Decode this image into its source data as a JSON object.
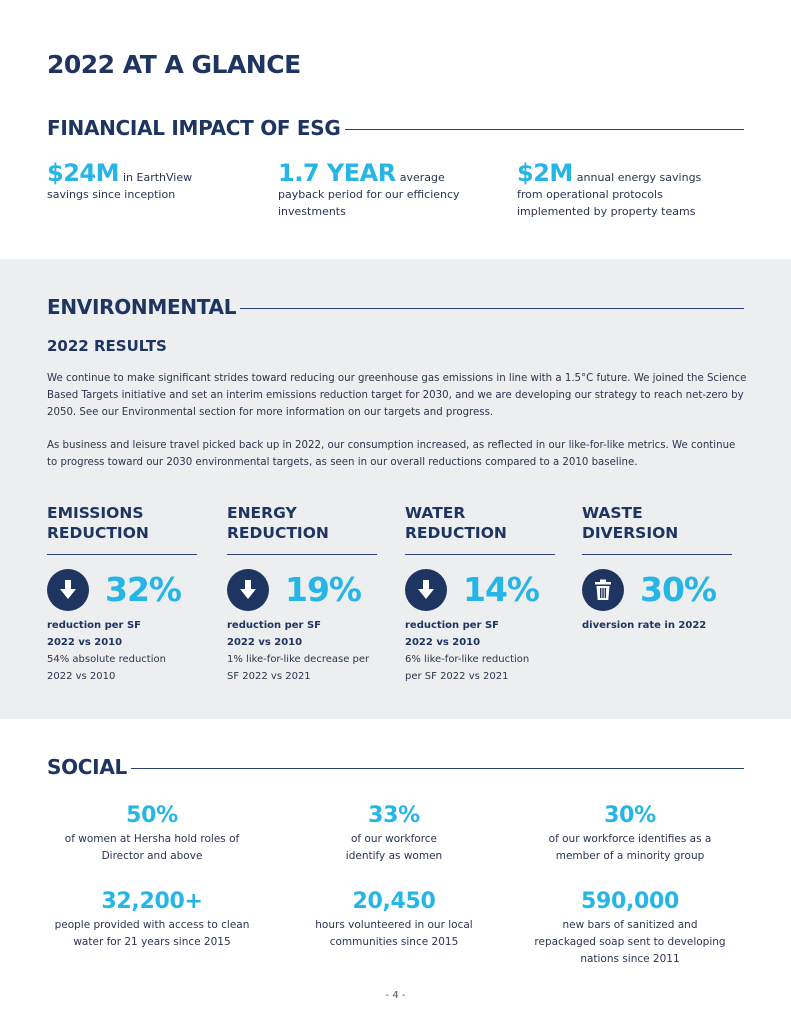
{
  "page_title": "2022 AT A GLANCE",
  "financial": {
    "heading": "FINANCIAL IMPACT OF ESG",
    "items": [
      {
        "value": "$24M",
        "lead": "in EarthView",
        "rest": "savings since inception"
      },
      {
        "value": "1.7 YEAR",
        "lead": "average",
        "rest": "payback period for our efficiency investments"
      },
      {
        "value": "$2M",
        "lead": "annual energy savings",
        "rest": "from operational protocols implemented by property teams"
      }
    ]
  },
  "environmental": {
    "heading": "ENVIRONMENTAL",
    "subheading": "2022 RESULTS",
    "paragraphs": [
      "We continue to make significant strides toward reducing our greenhouse gas emissions in line with a 1.5°C future. We joined the Science Based Targets initiative and set an interim emissions reduction target for 2030, and we are developing our strategy to reach net-zero by 2050. See our Environmental section for more information on our targets and progress.",
      "As business and leisure travel picked back up in 2022, our consumption increased, as reflected in our like-for-like metrics. We continue to progress toward our 2030 environmental targets, as seen in our overall reductions compared to a 2010 baseline."
    ],
    "metrics": [
      {
        "title1": "EMISSIONS",
        "title2": "REDUCTION",
        "icon": "down-arrow-icon",
        "value": "32%",
        "bold1": "reduction per SF",
        "bold2": "2022 vs 2010",
        "line1": "54% absolute reduction",
        "line2": "2022 vs 2010"
      },
      {
        "title1": "ENERGY",
        "title2": "REDUCTION",
        "icon": "down-arrow-icon",
        "value": "19%",
        "bold1": "reduction per SF",
        "bold2": "2022 vs 2010",
        "line1": "1% like-for-like decrease per",
        "line2": "SF 2022 vs 2021"
      },
      {
        "title1": "WATER",
        "title2": "REDUCTION",
        "icon": "down-arrow-icon",
        "value": "14%",
        "bold1": "reduction per SF",
        "bold2": "2022 vs 2010",
        "line1": "6% like-for-like reduction",
        "line2": "per SF 2022 vs 2021"
      },
      {
        "title1": "WASTE",
        "title2": "DIVERSION",
        "icon": "trash-can-icon",
        "value": "30%",
        "bold1": "diversion rate in 2022"
      }
    ]
  },
  "social": {
    "heading": "SOCIAL",
    "stats": [
      {
        "value": "50%",
        "line1": "of women at Hersha hold roles of",
        "line2": "Director and above"
      },
      {
        "value": "33%",
        "line1": "of our workforce",
        "line2": "identify as women"
      },
      {
        "value": "30%",
        "line1": "of our workforce identifies as a",
        "line2": "member of a minority group"
      },
      {
        "value": "32,200+",
        "line1": "people provided with access to clean",
        "line2": "water for 21 years since 2015"
      },
      {
        "value": "20,450",
        "line1": "hours volunteered in our local",
        "line2": "communities since 2015"
      },
      {
        "value": "590,000",
        "line1": "new bars of sanitized and",
        "line2": "repackaged soap sent to developing",
        "line3": "nations since 2011"
      }
    ]
  },
  "page_number": "- 4 -",
  "colors": {
    "navy": "#1e3461",
    "cyan": "#25b5e6",
    "band": "#eceeef"
  }
}
